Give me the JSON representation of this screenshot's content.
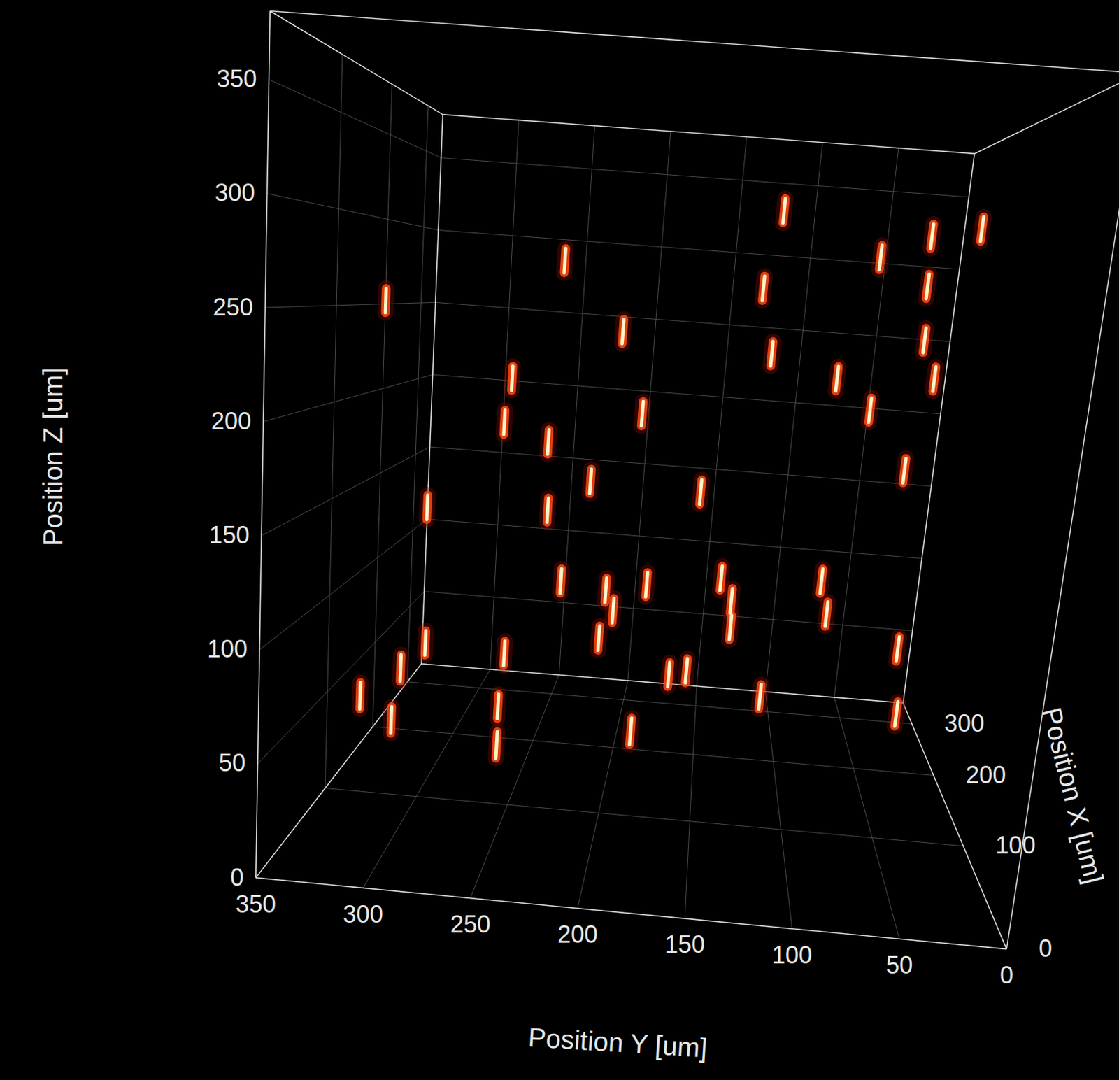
{
  "chart_data": {
    "type": "scatter3d",
    "xlabel": "Position X [um]",
    "ylabel": "Position Y [um]",
    "zlabel": "Position Z [um]",
    "xlim": [
      0,
      350
    ],
    "ylim": [
      0,
      350
    ],
    "zlim": [
      0,
      380
    ],
    "xticks": [
      0,
      100,
      200,
      300
    ],
    "yticks": [
      0,
      50,
      100,
      150,
      200,
      250,
      300,
      350
    ],
    "zticks": [
      0,
      50,
      100,
      150,
      200,
      250,
      300,
      350
    ],
    "grid": true,
    "color": "#ff4a10",
    "points": [
      {
        "x": 159,
        "y": 340,
        "z": 253
      },
      {
        "x": 159,
        "y": 244,
        "z": 283
      },
      {
        "x": 159,
        "y": 210,
        "z": 246
      },
      {
        "x": 159,
        "y": 136,
        "z": 276
      },
      {
        "x": 159,
        "y": 129,
        "z": 320
      },
      {
        "x": 159,
        "y": 128,
        "z": 240
      },
      {
        "x": 159,
        "y": 75,
        "z": 298
      },
      {
        "x": 159,
        "y": 49,
        "z": 312
      },
      {
        "x": 159,
        "y": 48,
        "z": 284
      },
      {
        "x": 159,
        "y": 46,
        "z": 254
      },
      {
        "x": 159,
        "y": 38,
        "z": 233
      },
      {
        "x": 159,
        "y": 23,
        "z": 318
      },
      {
        "x": 159,
        "y": 91,
        "z": 229
      },
      {
        "x": 159,
        "y": 71,
        "z": 213
      },
      {
        "x": 159,
        "y": 48,
        "z": 181
      },
      {
        "x": 159,
        "y": 269,
        "z": 215
      },
      {
        "x": 159,
        "y": 247,
        "z": 181
      },
      {
        "x": 159,
        "y": 222,
        "z": 161
      },
      {
        "x": 159,
        "y": 245,
        "z": 143
      },
      {
        "x": 159,
        "y": 196,
        "z": 201
      },
      {
        "x": 159,
        "y": 160,
        "z": 160
      },
      {
        "x": 159,
        "y": 272,
        "z": 190
      },
      {
        "x": 159,
        "y": 313,
        "z": 139
      },
      {
        "x": 159,
        "y": 235,
        "z": 104
      },
      {
        "x": 159,
        "y": 209,
        "z": 101
      },
      {
        "x": 159,
        "y": 186,
        "z": 106
      },
      {
        "x": 159,
        "y": 204,
        "z": 90
      },
      {
        "x": 159,
        "y": 211,
        "z": 74
      },
      {
        "x": 159,
        "y": 144,
        "z": 113
      },
      {
        "x": 159,
        "y": 137,
        "z": 101
      },
      {
        "x": 159,
        "y": 136,
        "z": 86
      },
      {
        "x": 159,
        "y": 87,
        "z": 116
      },
      {
        "x": 159,
        "y": 82,
        "z": 98
      },
      {
        "x": 159,
        "y": 39,
        "z": 82
      },
      {
        "x": 159,
        "y": 35,
        "z": 46
      },
      {
        "x": 159,
        "y": 169,
        "z": 57
      },
      {
        "x": 159,
        "y": 159,
        "z": 60
      },
      {
        "x": 159,
        "y": 115,
        "z": 49
      },
      {
        "x": 159,
        "y": 265,
        "z": 61
      },
      {
        "x": 159,
        "y": 267,
        "z": 31
      },
      {
        "x": 95,
        "y": 257,
        "z": 32
      },
      {
        "x": 95,
        "y": 186,
        "z": 45
      },
      {
        "x": 95,
        "y": 331,
        "z": 51
      },
      {
        "x": 95,
        "y": 314,
        "z": 40
      },
      {
        "x": 95,
        "y": 310,
        "z": 67
      },
      {
        "x": 159,
        "y": 311,
        "z": 63
      }
    ]
  }
}
